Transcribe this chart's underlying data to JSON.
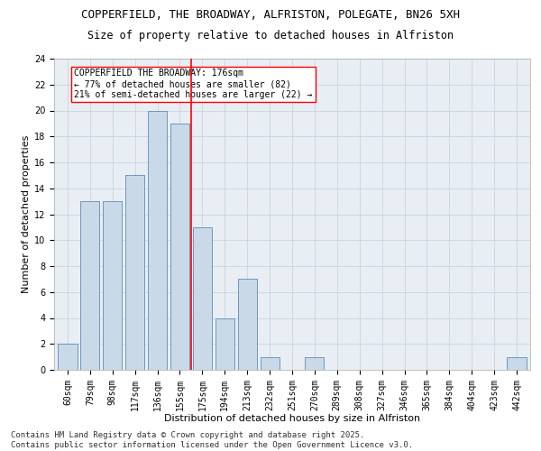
{
  "title_line1": "COPPERFIELD, THE BROADWAY, ALFRISTON, POLEGATE, BN26 5XH",
  "title_line2": "Size of property relative to detached houses in Alfriston",
  "xlabel": "Distribution of detached houses by size in Alfriston",
  "ylabel": "Number of detached properties",
  "footer": "Contains HM Land Registry data © Crown copyright and database right 2025.\nContains public sector information licensed under the Open Government Licence v3.0.",
  "categories": [
    "60sqm",
    "79sqm",
    "98sqm",
    "117sqm",
    "136sqm",
    "155sqm",
    "175sqm",
    "194sqm",
    "213sqm",
    "232sqm",
    "251sqm",
    "270sqm",
    "289sqm",
    "308sqm",
    "327sqm",
    "346sqm",
    "365sqm",
    "384sqm",
    "404sqm",
    "423sqm",
    "442sqm"
  ],
  "values": [
    2,
    13,
    13,
    15,
    20,
    19,
    11,
    4,
    7,
    1,
    0,
    1,
    0,
    0,
    0,
    0,
    0,
    0,
    0,
    0,
    1
  ],
  "bar_color": "#c9d9e8",
  "bar_edge_color": "#5b8db8",
  "vline_x": 5.5,
  "vline_color": "red",
  "annotation_text": "COPPERFIELD THE BROADWAY: 176sqm\n← 77% of detached houses are smaller (82)\n21% of semi-detached houses are larger (22) →",
  "annotation_box_color": "white",
  "annotation_box_edge": "red",
  "ylim": [
    0,
    24
  ],
  "yticks": [
    0,
    2,
    4,
    6,
    8,
    10,
    12,
    14,
    16,
    18,
    20,
    22,
    24
  ],
  "grid_color": "#c8d4dc",
  "bg_color": "#e8eef4",
  "title_fontsize": 9,
  "subtitle_fontsize": 8.5,
  "axis_label_fontsize": 8,
  "tick_fontsize": 7,
  "annotation_fontsize": 7,
  "footer_fontsize": 6.5
}
